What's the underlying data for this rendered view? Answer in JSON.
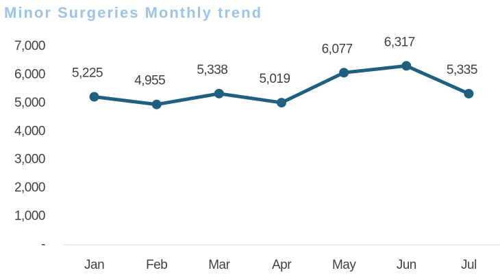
{
  "chart_data": {
    "type": "line",
    "title": "Minor Surgeries Monthly trend",
    "categories": [
      "Jan",
      "Feb",
      "Mar",
      "Apr",
      "May",
      "Jun",
      "Jul"
    ],
    "values": [
      5225,
      4955,
      5338,
      5019,
      6077,
      6317,
      5335
    ],
    "value_labels": [
      "5,225",
      "4,955",
      "5,338",
      "5,019",
      "6,077",
      "6,317",
      "5,335"
    ],
    "color": "#1f5f7f",
    "ylim": [
      0,
      7000
    ],
    "yticks": [
      {
        "value": 0,
        "label": "-"
      },
      {
        "value": 1000,
        "label": "1,000"
      },
      {
        "value": 2000,
        "label": "2,000"
      },
      {
        "value": 3000,
        "label": "3,000"
      },
      {
        "value": 4000,
        "label": "4,000"
      },
      {
        "value": 5000,
        "label": "5,000"
      },
      {
        "value": 6000,
        "label": "6,000"
      },
      {
        "value": 7000,
        "label": "7,000"
      }
    ],
    "grid": false
  }
}
